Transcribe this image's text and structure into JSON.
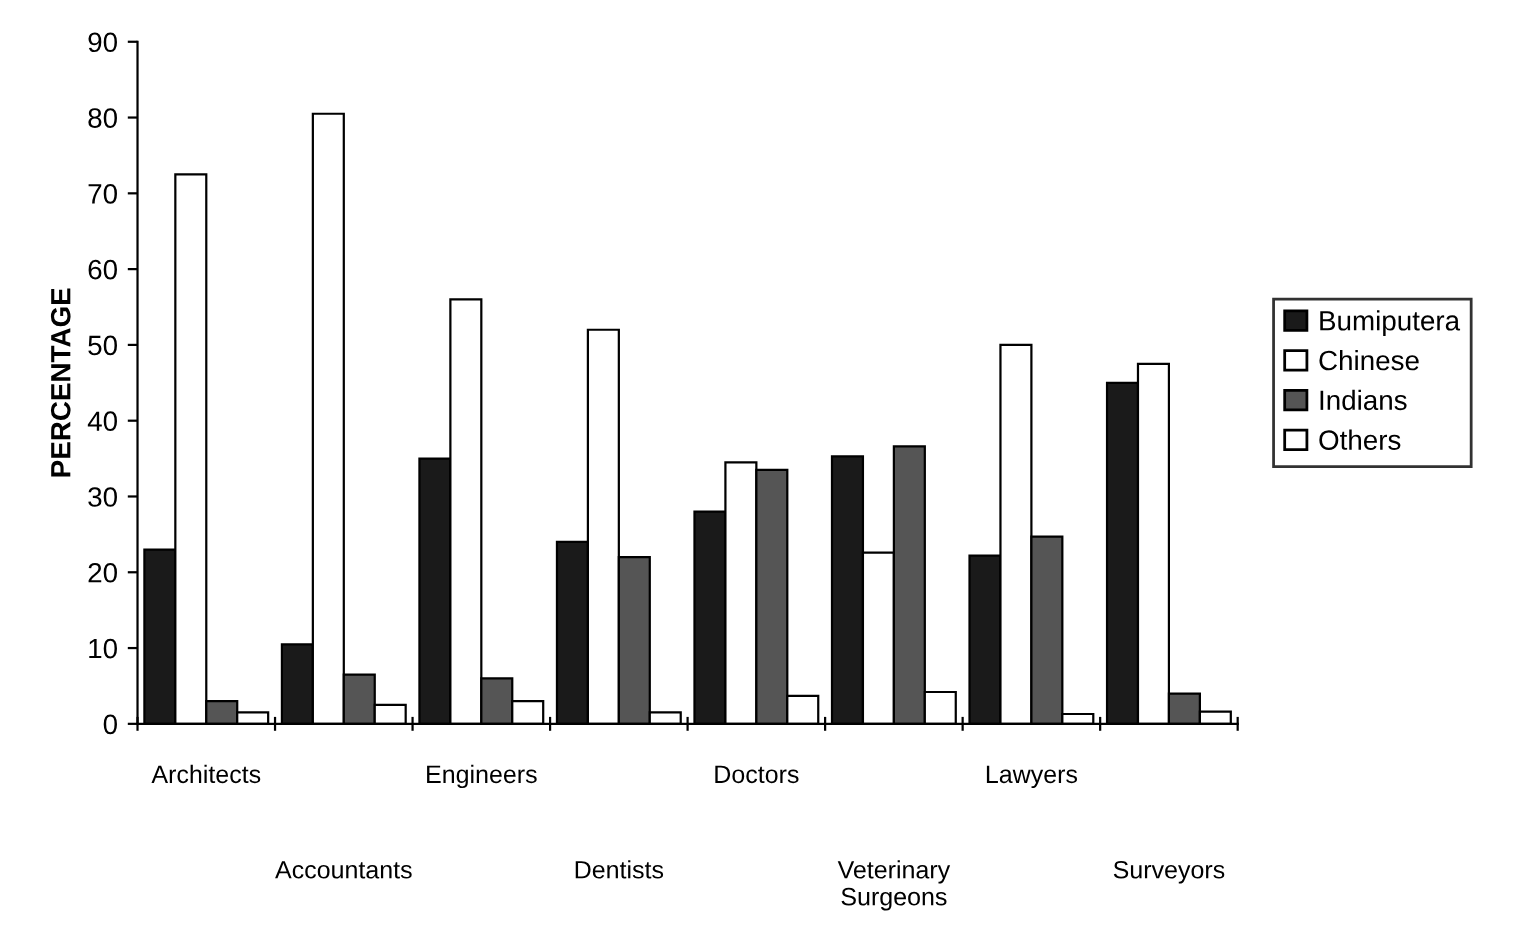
{
  "chart_data": {
    "type": "bar",
    "ylabel": "PERCENTAGE",
    "categories": [
      "Architects",
      "Accountants",
      "Engineers",
      "Dentists",
      "Doctors",
      "Veterinary\nSurgeons",
      "Lawyers",
      "Surveyors"
    ],
    "series": [
      {
        "name": "Bumiputera",
        "color": "#1a1a1a",
        "values": [
          23,
          10.5,
          35,
          24,
          28,
          35.3,
          22.2,
          45
        ]
      },
      {
        "name": "Chinese",
        "color": "#ffffff",
        "values": [
          72.5,
          80.5,
          56,
          52,
          34.5,
          22.6,
          50,
          47.5
        ]
      },
      {
        "name": "Indians",
        "color": "#555555",
        "values": [
          3,
          6.5,
          6,
          22,
          33.5,
          36.6,
          24.7,
          4
        ]
      },
      {
        "name": "Others",
        "color": "#ffffff",
        "values": [
          1.5,
          2.5,
          3,
          1.5,
          3.7,
          4.2,
          1.3,
          1.6
        ]
      }
    ],
    "ylim": [
      0,
      90
    ],
    "yticks": [
      0,
      10,
      20,
      30,
      40,
      50,
      60,
      70,
      80,
      90
    ],
    "grid": false,
    "legend": "right"
  }
}
